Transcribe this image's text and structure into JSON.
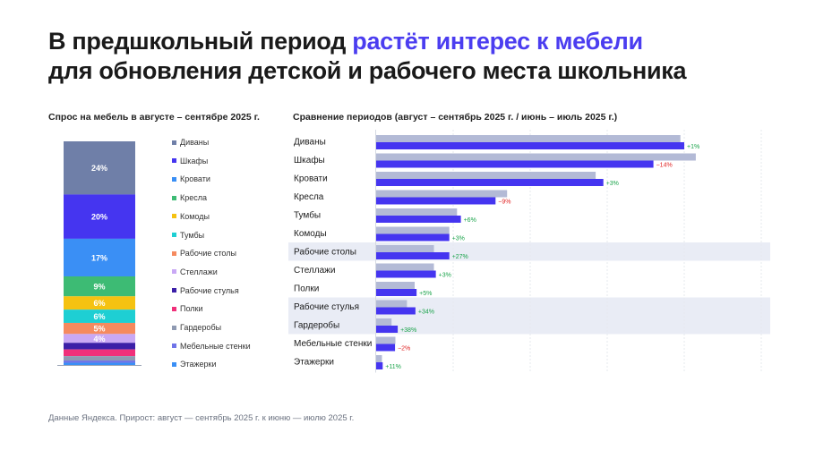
{
  "title": {
    "line1_plain": "В предшкольный период ",
    "line1_accent": "растёт интерес к мебели",
    "line2": "для обновления детской и рабочего места школьника"
  },
  "colors": {
    "accent": "#4b3df0",
    "prev_bar": "#b3bad6",
    "curr_bar": "#4535f0",
    "pos": "#1aa34a",
    "neg": "#e02424",
    "highlight": "#e9ecf5"
  },
  "footnote": "Данные Яндекса. Прирост: август — сентябрь 2025 г. к июню — июлю 2025 г.",
  "chart_data": [
    {
      "type": "bar",
      "stacked": true,
      "title": "Спрос на мебель в августе – сентябре 2025 г.",
      "series": [
        {
          "name": "Диваны",
          "value": 24,
          "label": "24%",
          "color": "#6f7fa8"
        },
        {
          "name": "Шкафы",
          "value": 20,
          "label": "20%",
          "color": "#4535f0"
        },
        {
          "name": "Кровати",
          "value": 17,
          "label": "17%",
          "color": "#3a8ff5"
        },
        {
          "name": "Кресла",
          "value": 9,
          "label": "9%",
          "color": "#3dbb74"
        },
        {
          "name": "Комоды",
          "value": 6,
          "label": "6%",
          "color": "#f5c211"
        },
        {
          "name": "Тумбы",
          "value": 6,
          "label": "6%",
          "color": "#1ecfd3"
        },
        {
          "name": "Рабочие столы",
          "value": 5,
          "label": "5%",
          "color": "#f58a5f"
        },
        {
          "name": "Стеллажи",
          "value": 4,
          "label": "4%",
          "color": "#c9a8f5"
        },
        {
          "name": "Рабочие стулья",
          "value": 3,
          "label": "",
          "color": "#3b1fa8"
        },
        {
          "name": "Полки",
          "value": 3,
          "label": "",
          "color": "#f0307a"
        },
        {
          "name": "Гардеробы",
          "value": 2,
          "label": "",
          "color": "#8f9ab2"
        },
        {
          "name": "Мебельные стенки",
          "value": 1,
          "label": "",
          "color": "#6f74e8"
        },
        {
          "name": "Этажерки",
          "value": 1,
          "label": "",
          "color": "#3a8ff5"
        }
      ]
    },
    {
      "type": "bar",
      "orientation": "horizontal",
      "title": "Сравнение периодов (август – сентябрь 2025 г. / июнь – июль 2025 г.)",
      "xlim": [
        0,
        100
      ],
      "categories": [
        "Диваны",
        "Шкафы",
        "Кровати",
        "Кресла",
        "Тумбы",
        "Комоды",
        "Рабочие столы",
        "Стеллажи",
        "Полки",
        "Рабочие стулья",
        "Гардеробы",
        "Мебельные стенки",
        "Этажерки"
      ],
      "highlighted": [
        "Рабочие столы",
        "Рабочие стулья",
        "Гардеробы"
      ],
      "series": [
        {
          "period": "previous",
          "values": [
            79,
            83,
            57,
            34,
            21,
            19,
            15,
            15,
            10,
            8,
            4,
            5,
            1.5
          ]
        },
        {
          "period": "current",
          "values": [
            80,
            72,
            59,
            31,
            22,
            19,
            19,
            15.5,
            10.5,
            10.2,
            5.6,
            4.9,
            1.7
          ]
        }
      ],
      "change_labels": [
        "+1%",
        "−14%",
        "+3%",
        "−9%",
        "+6%",
        "+3%",
        "+27%",
        "+3%",
        "+5%",
        "+34%",
        "+38%",
        "−2%",
        "+11%"
      ]
    }
  ]
}
